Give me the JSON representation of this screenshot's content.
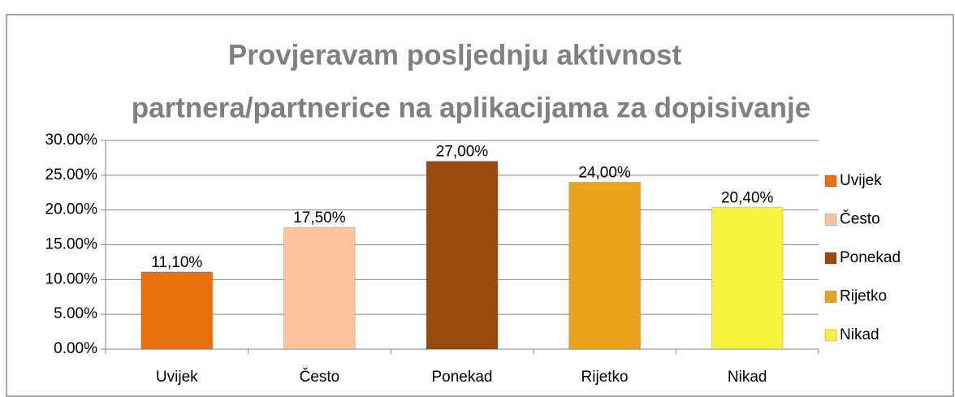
{
  "chart_data": {
    "type": "bar",
    "title": [
      "Provjeravam posljednju aktivnost",
      "partnera/partnerice na aplikacijama za dopisivanje"
    ],
    "categories": [
      "Uvijek",
      "Često",
      "Ponekad",
      "Rijetko",
      "Nikad"
    ],
    "values": [
      11.1,
      17.5,
      27,
      24,
      20.4
    ],
    "value_labels": [
      "11,10%",
      "17,50%",
      "27,00%",
      "24,00%",
      "20,40%"
    ],
    "colors": [
      "#e8700f",
      "#fbc49a",
      "#9a4a0c",
      "#eda21b",
      "#f4f43c"
    ],
    "ylim": [
      0,
      30
    ],
    "yticks": [
      {
        "value": 0,
        "label": "0.00%"
      },
      {
        "value": 5,
        "label": "5.00%"
      },
      {
        "value": 10,
        "label": "10.00%"
      },
      {
        "value": 15,
        "label": "15.00%"
      },
      {
        "value": 20,
        "label": "20.00%"
      },
      {
        "value": 25,
        "label": "25.00%"
      },
      {
        "value": 30,
        "label": "30.00%"
      }
    ],
    "grid": true,
    "legend": "right"
  }
}
